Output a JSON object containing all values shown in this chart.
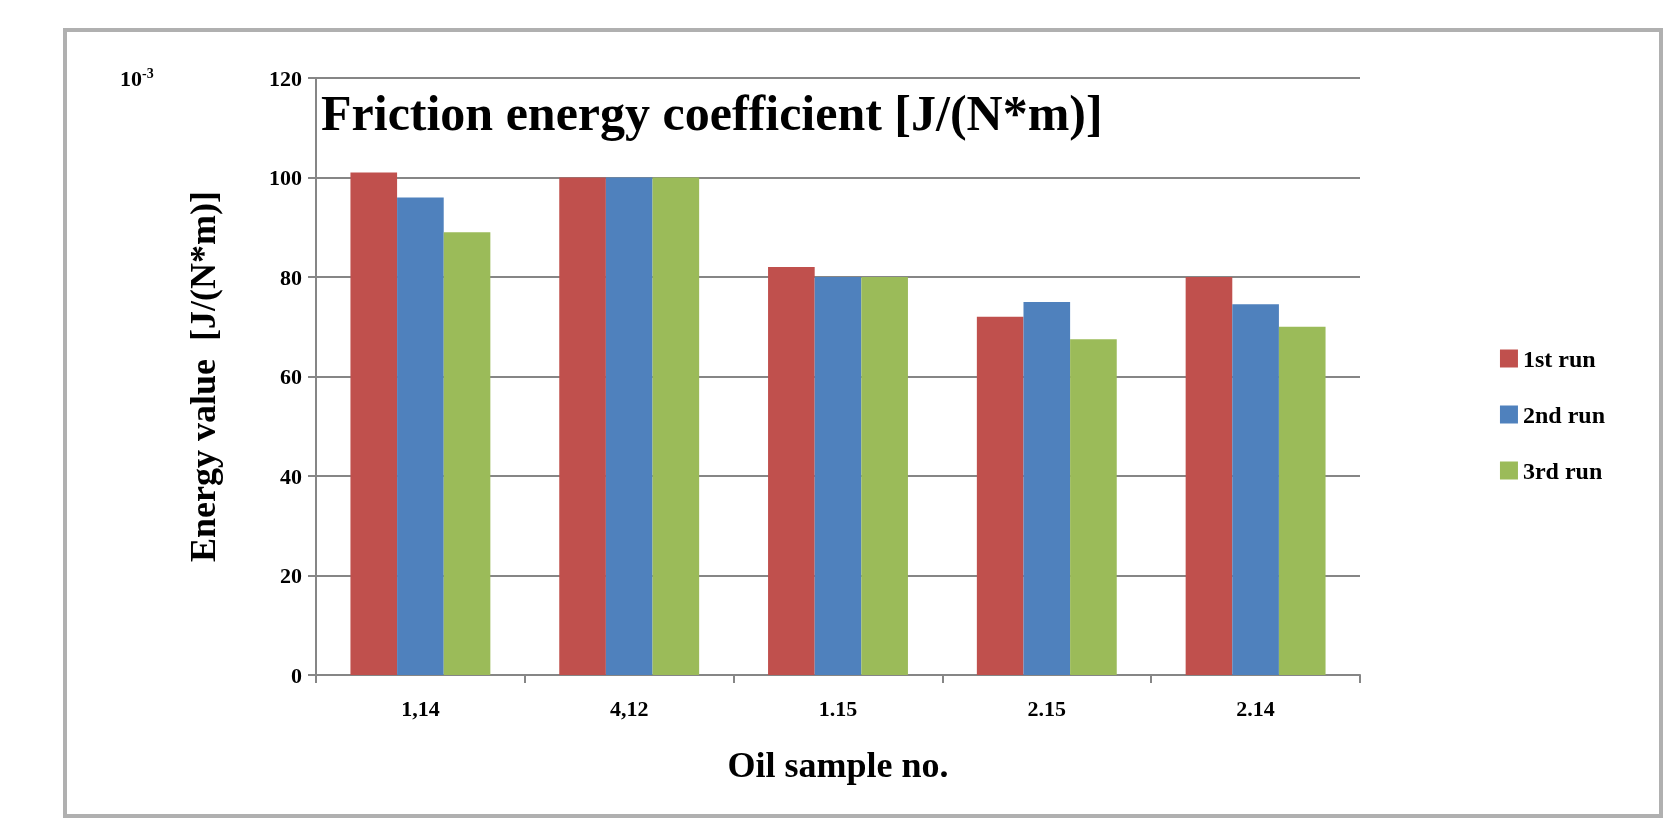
{
  "chart_data": {
    "type": "bar",
    "title": "Friction energy coefficient [J/(N*m)]",
    "xlabel": "Oil sample no.",
    "ylabel": "Energy value  [J/(N*m)]",
    "annotations": [
      "10$^{-3}$"
    ],
    "categories": [
      "1,14",
      "4,12",
      "1.15",
      "2.15",
      "2.14"
    ],
    "series": [
      {
        "name": "1st run",
        "color": "#c0504d",
        "values": [
          101,
          100,
          82,
          72,
          80
        ]
      },
      {
        "name": "2nd run",
        "color": "#4f81bd",
        "values": [
          96,
          100,
          80,
          75,
          74.5
        ]
      },
      {
        "name": "3rd run",
        "color": "#9bbb59",
        "values": [
          89,
          100,
          80,
          67.5,
          70
        ]
      }
    ],
    "ylim": [
      0,
      120
    ],
    "yticks": [
      0,
      20,
      40,
      60,
      80,
      100,
      120
    ],
    "grid": "y",
    "legend": "right"
  }
}
